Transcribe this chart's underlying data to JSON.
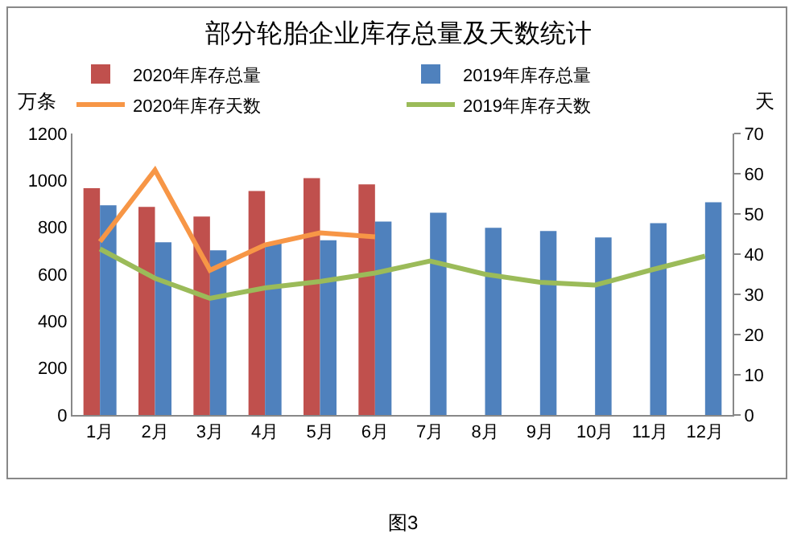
{
  "chart_data": {
    "type": "bar",
    "title": "部分轮胎企业库存总量及天数统计",
    "ylabel": "万条",
    "y2label": "天",
    "categories": [
      "1月",
      "2月",
      "3月",
      "4月",
      "5月",
      "6月",
      "7月",
      "8月",
      "9月",
      "10月",
      "11月",
      "12月"
    ],
    "series": [
      {
        "name": "2020年库存总量",
        "color": "#c0504d",
        "values": [
          967,
          887,
          846,
          955,
          1010,
          983,
          null,
          null,
          null,
          null,
          null,
          null
        ]
      },
      {
        "name": "2019年库存总量",
        "color": "#4f81bd",
        "values": [
          894,
          736,
          702,
          730,
          745,
          825,
          862,
          798,
          784,
          757,
          818,
          907
        ]
      },
      {
        "name": "2020年库存天数",
        "type": "line",
        "axis": "y2",
        "color": "#f79646",
        "values": [
          43.1,
          60.9,
          36,
          42.3,
          45.3,
          44.3,
          null,
          null,
          null,
          null,
          null,
          null
        ]
      },
      {
        "name": "2019年库存天数",
        "type": "line",
        "axis": "y2",
        "color": "#9bbb59",
        "values": [
          41.3,
          34,
          29,
          31.6,
          33.2,
          35.3,
          38.3,
          35,
          33,
          32.3,
          36,
          39.5
        ]
      }
    ],
    "ylim": [
      0,
      1200
    ],
    "yticks": [
      0,
      200,
      400,
      600,
      800,
      1000,
      1200
    ],
    "y2lim": [
      0,
      70
    ],
    "y2ticks": [
      0,
      10,
      20,
      30,
      40,
      50,
      60,
      70
    ],
    "grid": false,
    "legend": "top",
    "marker": "none",
    "annotations": [
      "图3"
    ]
  }
}
